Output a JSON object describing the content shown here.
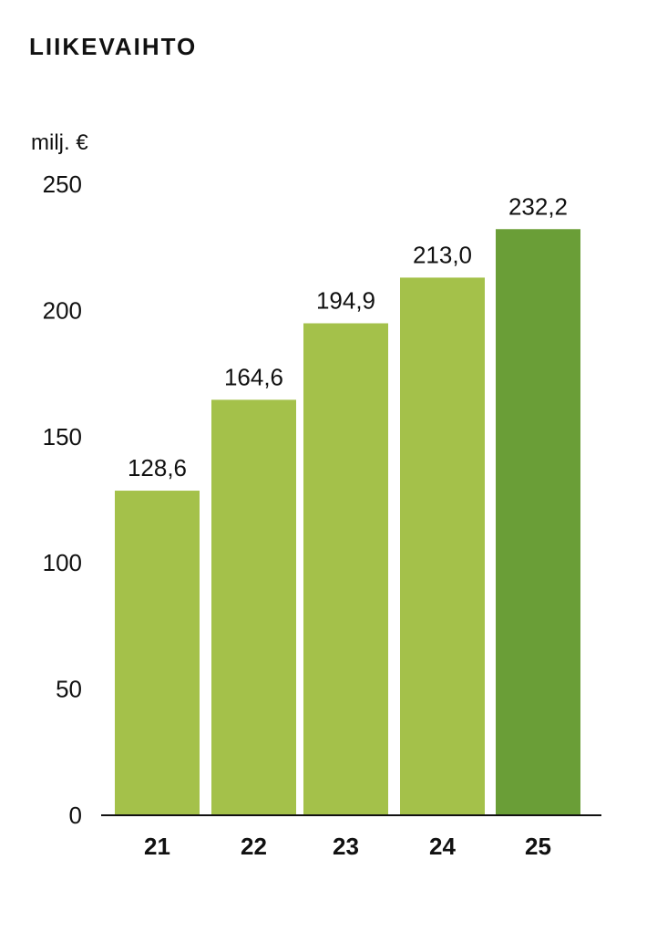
{
  "page": {
    "title": "LIIKEVAIHTO"
  },
  "chart_data": {
    "type": "bar",
    "unit_label": "milj. €",
    "categories": [
      "21",
      "22",
      "23",
      "24",
      "25"
    ],
    "values": [
      128.6,
      164.6,
      194.9,
      213.0,
      232.2
    ],
    "value_labels": [
      "128,6",
      "164,6",
      "194,9",
      "213,0",
      "232,2"
    ],
    "ylim": [
      0,
      250
    ],
    "yticks": [
      0,
      50,
      100,
      150,
      200,
      250
    ],
    "grid": false,
    "colors": {
      "bar": "#a4c14a",
      "highlight_bar": "#6a9e37",
      "axis": "#111111",
      "text": "#111111"
    },
    "highlight_index": 4
  }
}
